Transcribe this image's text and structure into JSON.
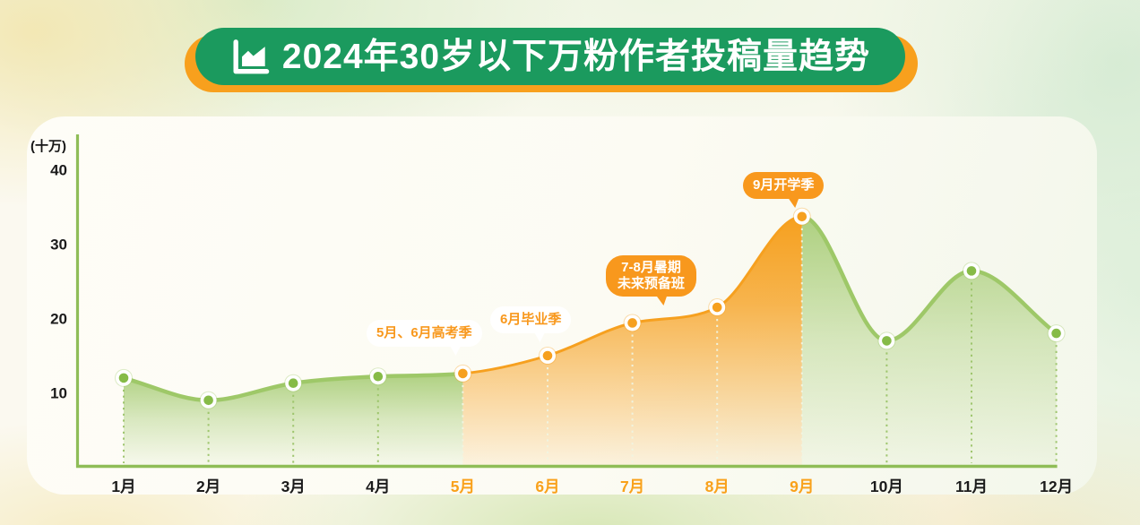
{
  "banner": {
    "title": "2024年30岁以下万粉作者投稿量趋势",
    "icon": "area-chart-icon",
    "green": "#1B9A5E",
    "orange": "#F8A01D"
  },
  "chart_data": {
    "type": "area",
    "title": "2024年30岁以下万粉作者投稿量趋势",
    "ylabel": "(十万)",
    "xlabel": "",
    "categories": [
      "1月",
      "2月",
      "3月",
      "4月",
      "5月",
      "6月",
      "7月",
      "8月",
      "9月",
      "10月",
      "11月",
      "12月"
    ],
    "values": [
      12,
      9,
      11.3,
      12.2,
      12.6,
      15,
      19.4,
      21.5,
      33.7,
      17,
      26.4,
      18
    ],
    "yticks": [
      10,
      20,
      30,
      40
    ],
    "ylim": [
      0,
      44
    ],
    "grid": false,
    "legend": null,
    "series_color_ranges": [
      {
        "from": "1月",
        "to": "5月",
        "color": "green"
      },
      {
        "from": "5月",
        "to": "9月",
        "color": "orange"
      },
      {
        "from": "9月",
        "to": "12月",
        "color": "green"
      }
    ],
    "highlight_x_labels": [
      "5月",
      "6月",
      "7月",
      "8月",
      "9月"
    ],
    "annotations": [
      {
        "label": "5月、6月高考季",
        "target": "5月",
        "style": "white-pill"
      },
      {
        "label": "6月毕业季",
        "target": "6月",
        "style": "white-pill"
      },
      {
        "label": "7-8月暑期",
        "label_line2": "未来预备班",
        "target": "8月",
        "style": "orange-pill"
      },
      {
        "label": "9月开学季",
        "target": "9月",
        "style": "orange-pill"
      }
    ],
    "colors": {
      "green_line": "#9EC868",
      "green_fill": "#ACCF7D",
      "green_marker": "#86BB47",
      "orange": "#F6A01F",
      "orange_pill": "#F8981D",
      "axis": "#8FBD57",
      "tick_text": "#1B1B1B",
      "month_highlight": "#F9A11B",
      "dotted_on_green": "#9CC46A",
      "dotted_on_orange": "#F0F5E2"
    }
  }
}
